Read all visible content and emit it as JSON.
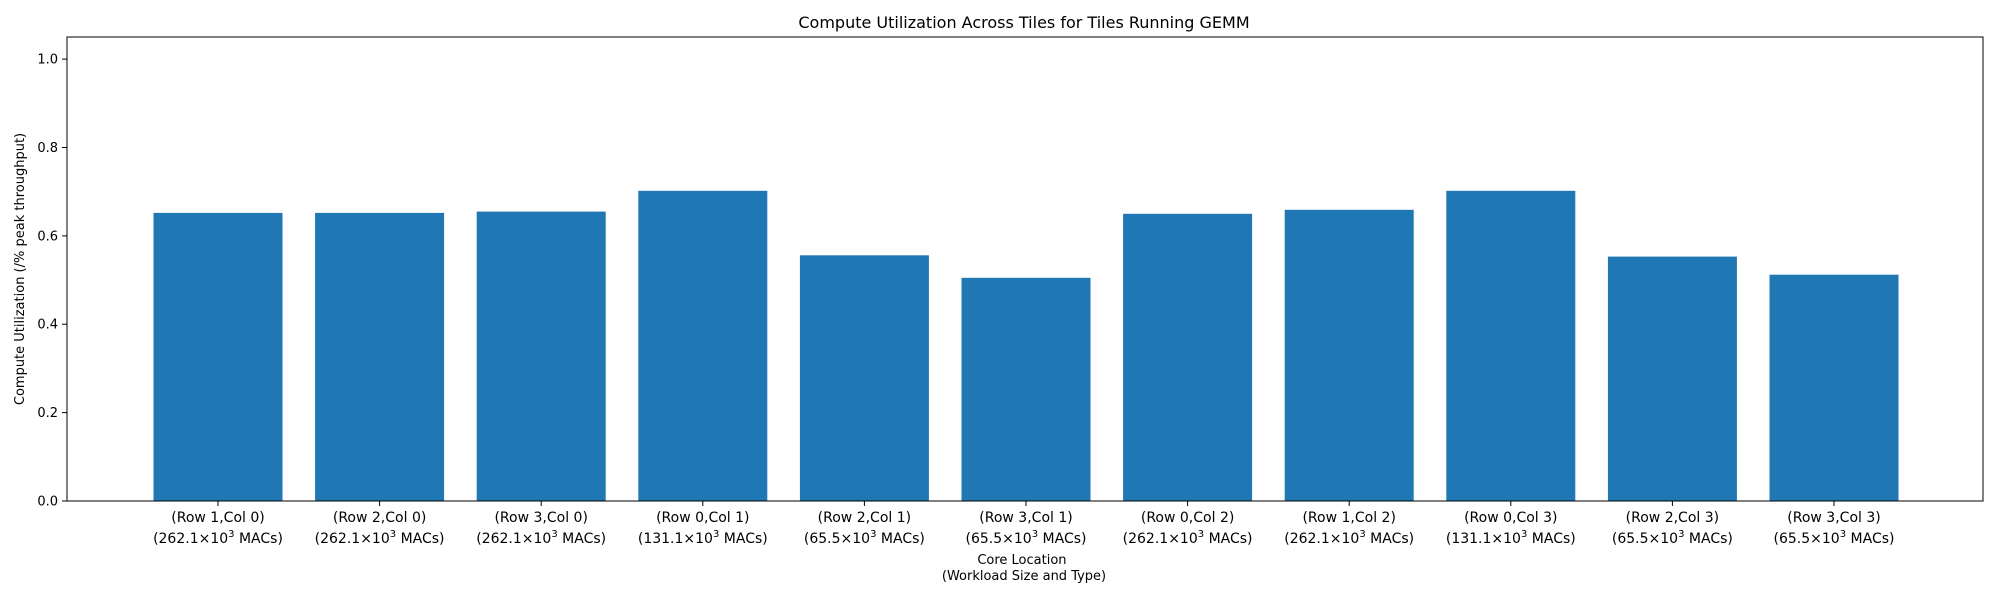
{
  "chart_data": {
    "type": "bar",
    "title": "Compute Utilization Across Tiles for Tiles Running GEMM",
    "xlabel_lines": [
      "Core Location",
      "(Workload Size and Type)"
    ],
    "ylabel": "Compute Utilization (/% peak throughput)",
    "ylim": [
      0,
      1.05
    ],
    "yticks": [
      "0.0",
      "0.2",
      "0.4",
      "0.6",
      "0.8",
      "1.0"
    ],
    "grid": false,
    "bar_color": "#1f77b4",
    "categories": [
      {
        "location": "(Row 1,Col 0)",
        "workload": "262.1",
        "unit": "MACs)"
      },
      {
        "location": "(Row 2,Col 0)",
        "workload": "262.1",
        "unit": "MACs)"
      },
      {
        "location": "(Row 3,Col 0)",
        "workload": "262.1",
        "unit": "MACs)"
      },
      {
        "location": "(Row 0,Col 1)",
        "workload": "131.1",
        "unit": "MACs)"
      },
      {
        "location": "(Row 2,Col 1)",
        "workload": "65.5",
        "unit": "MACs)"
      },
      {
        "location": "(Row 3,Col 1)",
        "workload": "65.5",
        "unit": "MACs)"
      },
      {
        "location": "(Row 0,Col 2)",
        "workload": "262.1",
        "unit": "MACs)"
      },
      {
        "location": "(Row 1,Col 2)",
        "workload": "262.1",
        "unit": "MACs)"
      },
      {
        "location": "(Row 0,Col 3)",
        "workload": "131.1",
        "unit": "MACs)"
      },
      {
        "location": "(Row 2,Col 3)",
        "workload": "65.5",
        "unit": "MACs)"
      },
      {
        "location": "(Row 3,Col 3)",
        "workload": "65.5",
        "unit": "MACs)"
      }
    ],
    "values": [
      0.652,
      0.652,
      0.655,
      0.702,
      0.556,
      0.505,
      0.65,
      0.659,
      0.702,
      0.553,
      0.512
    ]
  }
}
